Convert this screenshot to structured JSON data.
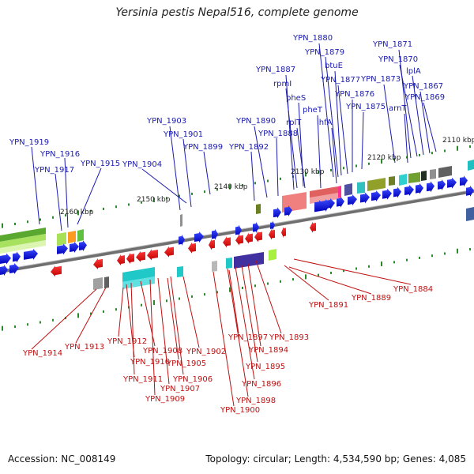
{
  "title": "Yersinia pestis Nepal516, complete genome",
  "footer": {
    "accession": "Accession: NC_008149",
    "summary": "Topology: circular; Length: 4,534,590 bp; Genes: 4,085"
  },
  "colors": {
    "forward_strand": "#0a1ad8",
    "reverse_strand": "#e01010",
    "forward_label": "#1a1ab0",
    "reverse_label": "#c01010",
    "backbone": "#7a7a7a",
    "tick": "#2a8a2a"
  },
  "scale_labels": [
    "2110 kbp",
    "2120 kbp",
    "2130 kbp",
    "2140 kbp",
    "2150 kbp",
    "2160 kbp"
  ],
  "forward_labels": [
    "YPN_1919",
    "YPN_1916",
    "YPN_1917",
    "YPN_1915",
    "YPN_1904",
    "YPN_1903",
    "YPN_1901",
    "YPN_1899",
    "YPN_1892",
    "YPN_1890",
    "YPN_1888",
    "YPN_1887",
    "rpmI",
    "pheS",
    "rplT",
    "pheT",
    "ihfA",
    "YPN_1880",
    "YPN_1879",
    "btuE",
    "YPN_1877",
    "YPN_1876",
    "YPN_1875",
    "YPN_1873",
    "YPN_1871",
    "YPN_1870",
    "lplA",
    "YPN_1867",
    "arnT",
    "YPN_1869"
  ],
  "reverse_labels": [
    "YPN_1914",
    "YPN_1913",
    "YPN_1912",
    "YPN_1910",
    "YPN_1911",
    "YPN_1908",
    "YPN_1909",
    "YPN_1907",
    "YPN_1906",
    "YPN_1905",
    "YPN_1902",
    "YPN_1900",
    "YPN_1898",
    "YPN_1897",
    "YPN_1896",
    "YPN_1895",
    "YPN_1894",
    "YPN_1893",
    "YPN_1891",
    "YPN_1889",
    "YPN_1884"
  ]
}
